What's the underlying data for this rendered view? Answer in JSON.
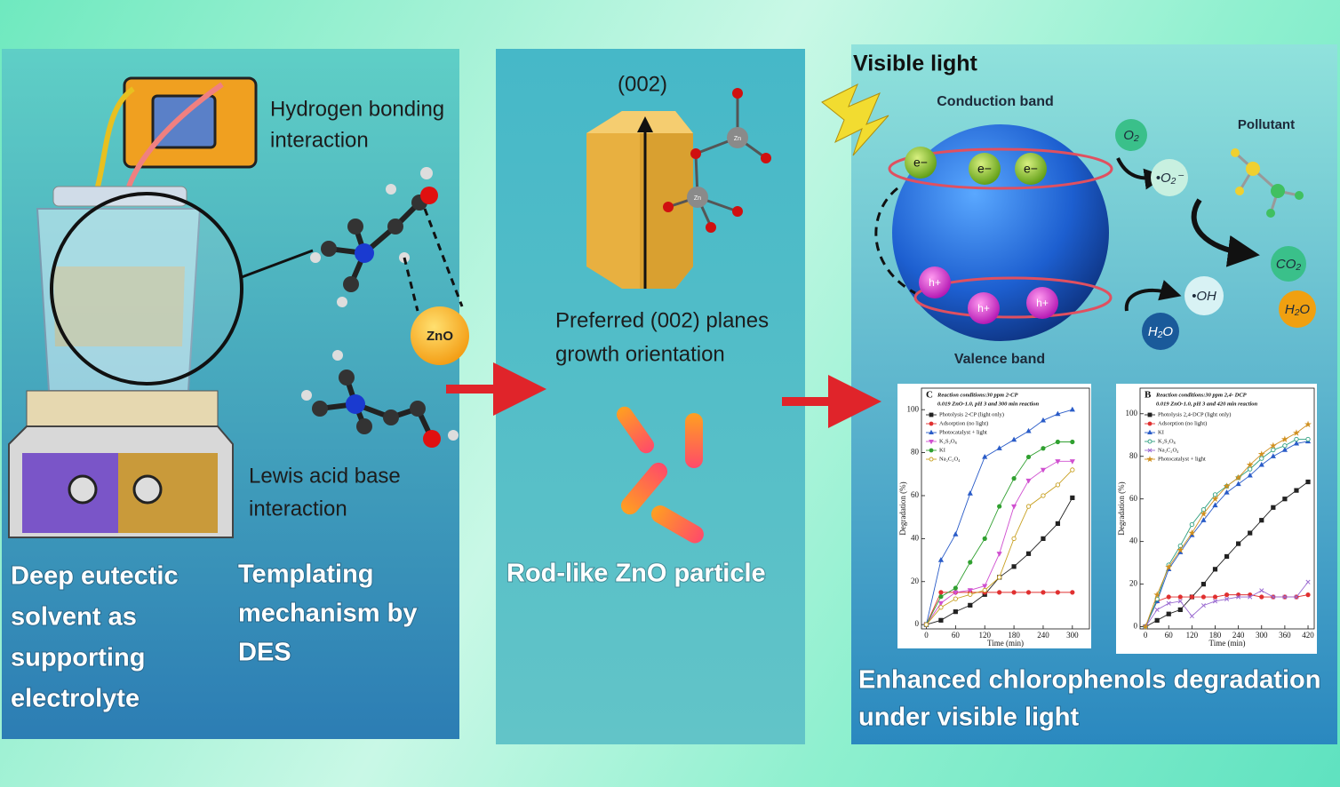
{
  "diagram": {
    "panel1": {
      "hbond_label": [
        "Hydrogen bonding",
        "interaction"
      ],
      "zno": "ZnO",
      "lewis_label": [
        "Lewis acid base",
        "interaction"
      ],
      "caption_left": [
        "Deep eutectic",
        "solvent as",
        "supporting",
        "electrolyte"
      ],
      "caption_right": [
        "Templating",
        "mechanism by",
        "DES"
      ]
    },
    "panel2": {
      "axis_label": "(002)",
      "zn_atoms": [
        "Zn",
        "Zn"
      ],
      "orientation_label": [
        "Preferred (002) planes",
        "growth orientation"
      ],
      "caption": "Rod-like ZnO particle"
    },
    "panel3": {
      "visible_light": "Visible light",
      "conduction_band": "Conduction  band",
      "valence_band": "Valence band",
      "electrons": [
        "e−",
        "e−",
        "e−"
      ],
      "holes": [
        "h+",
        "h+",
        "h+"
      ],
      "o2": "O₂",
      "superoxide": "•O₂⁻",
      "pollutant": "Pollutant",
      "co2": "CO₂",
      "h2o_product": "H₂O",
      "water": "H₂O",
      "hydroxyl": "•OH",
      "caption": [
        "Enhanced chlorophenols degradation",
        "under visible light"
      ]
    }
  },
  "chart_data": [
    {
      "type": "line",
      "label": "C",
      "title": [
        "Reaction conditions:30 ppm 2-CP",
        "0.019 ZnO-1.0, pH 3 and 300 min reaction"
      ],
      "x_label": "Time (min)",
      "y_label": "Degradation (%)",
      "legend": "upper left",
      "xlim": [
        -10,
        335
      ],
      "ylim": [
        -2,
        110
      ],
      "xticks": [
        0,
        60,
        120,
        180,
        240,
        300
      ],
      "yticks": [
        0,
        20,
        40,
        60,
        80,
        100
      ],
      "x": [
        0,
        30,
        60,
        90,
        120,
        150,
        180,
        210,
        240,
        270,
        300
      ],
      "series": [
        {
          "name": "Photolysis 2-CP (light only)",
          "color": "#222222",
          "marker": "square",
          "values": [
            0,
            2,
            6,
            9,
            14,
            22,
            27,
            33,
            40,
            47,
            59
          ]
        },
        {
          "name": "Adsorption (no light)",
          "color": "#e03030",
          "marker": "circle",
          "values": [
            0,
            15,
            15,
            15,
            15,
            15,
            15,
            15,
            15,
            15,
            15
          ]
        },
        {
          "name": "Photocatalyst + light",
          "color": "#2a5cc8",
          "marker": "triangle",
          "values": [
            0,
            30,
            42,
            61,
            78,
            82,
            86,
            90,
            95,
            98,
            100
          ]
        },
        {
          "name": "K₂S₂O₈",
          "color": "#d050d0",
          "marker": "triangle-down",
          "values": [
            0,
            10,
            15,
            16,
            18,
            33,
            55,
            67,
            72,
            76,
            76
          ]
        },
        {
          "name": "KI",
          "color": "#30a030",
          "marker": "circle",
          "values": [
            0,
            13,
            17,
            29,
            40,
            55,
            68,
            78,
            82,
            85,
            85
          ]
        },
        {
          "name": "Na₂C₂O₄",
          "color": "#c8a020",
          "marker": "open-circle",
          "values": [
            0,
            8,
            12,
            14,
            16,
            22,
            40,
            55,
            60,
            65,
            72
          ]
        }
      ]
    },
    {
      "type": "line",
      "label": "B",
      "title": [
        "Reaction conditions:30 ppm 2,4- DCP",
        "0.019 ZnO-1.0, pH 3 and 420 min reaction"
      ],
      "x_label": "Time (min)",
      "y_label": "Degradation (%)",
      "legend": "upper left",
      "xlim": [
        -14,
        436
      ],
      "ylim": [
        -1,
        112
      ],
      "xticks": [
        0,
        60,
        120,
        180,
        240,
        300,
        360,
        420
      ],
      "yticks": [
        0,
        20,
        40,
        60,
        80,
        100
      ],
      "x": [
        0,
        30,
        60,
        90,
        120,
        150,
        180,
        210,
        240,
        270,
        300,
        330,
        360,
        390,
        420
      ],
      "series": [
        {
          "name": "Photolysis 2,4-DCP (light only)",
          "color": "#222222",
          "marker": "square",
          "values": [
            0,
            3,
            6,
            8,
            14,
            20,
            27,
            33,
            39,
            44,
            50,
            56,
            60,
            64,
            68
          ]
        },
        {
          "name": "Adsorption (no light)",
          "color": "#e03030",
          "marker": "circle",
          "values": [
            0,
            12,
            14,
            14,
            14,
            14,
            14,
            15,
            15,
            15,
            14,
            14,
            14,
            14,
            15
          ]
        },
        {
          "name": "KI",
          "color": "#2a5cc8",
          "marker": "triangle",
          "values": [
            0,
            12,
            27,
            35,
            43,
            50,
            57,
            63,
            67,
            71,
            76,
            80,
            83,
            86,
            87
          ]
        },
        {
          "name": "K₂S₂O₈",
          "color": "#30a080",
          "marker": "open-circle",
          "values": [
            0,
            13,
            29,
            38,
            48,
            55,
            62,
            66,
            70,
            74,
            79,
            83,
            85,
            88,
            88
          ]
        },
        {
          "name": "Na₂C₂O₄",
          "color": "#9a6ad0",
          "marker": "x",
          "values": [
            0,
            8,
            11,
            12,
            5,
            10,
            12,
            13,
            14,
            14,
            17,
            14,
            14,
            14,
            21
          ]
        },
        {
          "name": "Photocatalyst + light",
          "color": "#d09020",
          "marker": "star",
          "values": [
            0,
            15,
            28,
            36,
            44,
            53,
            60,
            66,
            70,
            76,
            81,
            85,
            88,
            91,
            95
          ]
        }
      ]
    }
  ]
}
